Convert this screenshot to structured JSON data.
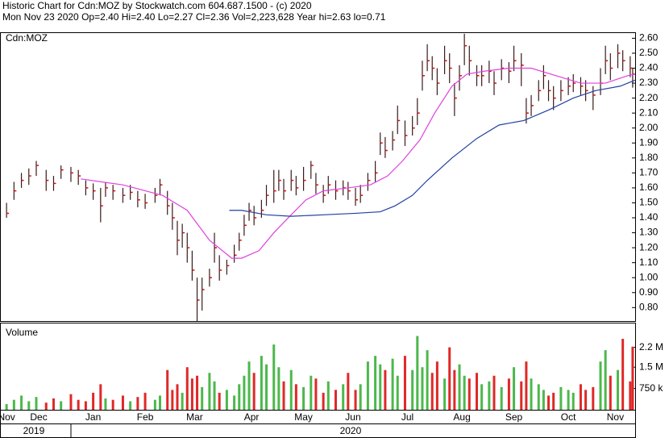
{
  "header": {
    "title": "Historic Chart for Cdn:MOZ by Stockwatch.com 604.687.1500 - (c) 2020",
    "summary": "Mon Nov 23 2020  Op=2.40 Hi=2.40 Lo=2.27 Cl=2.36 Vol=2,223,628 Year hi=2.63  lo=0.71"
  },
  "chart_data": [
    {
      "type": "ohlc",
      "title": "Cdn:MOZ",
      "xlim": [
        0,
        256
      ],
      "ylim": [
        0.71,
        2.64
      ],
      "yticks": [
        {
          "value": 0.8,
          "label": "0.80"
        },
        {
          "value": 0.9,
          "label": "0.90"
        },
        {
          "value": 1.0,
          "label": "1.00"
        },
        {
          "value": 1.1,
          "label": "1.10"
        },
        {
          "value": 1.2,
          "label": "1.20"
        },
        {
          "value": 1.3,
          "label": "1.30"
        },
        {
          "value": 1.4,
          "label": "1.40"
        },
        {
          "value": 1.5,
          "label": "1.50"
        },
        {
          "value": 1.6,
          "label": "1.60"
        },
        {
          "value": 1.7,
          "label": "1.70"
        },
        {
          "value": 1.8,
          "label": "1.80"
        },
        {
          "value": 1.9,
          "label": "1.90"
        },
        {
          "value": 2.0,
          "label": "2.00"
        },
        {
          "value": 2.1,
          "label": "2.10"
        },
        {
          "value": 2.2,
          "label": "2.20"
        },
        {
          "value": 2.3,
          "label": "2.30"
        },
        {
          "value": 2.4,
          "label": "2.40"
        },
        {
          "value": 2.5,
          "label": "2.50"
        },
        {
          "value": 2.6,
          "label": "2.60"
        }
      ],
      "x": [
        2,
        5,
        8,
        11,
        14,
        18,
        21,
        24,
        28,
        31,
        34,
        37,
        40,
        42,
        45,
        49,
        52,
        55,
        58,
        62,
        64,
        67,
        69,
        71,
        73,
        75,
        77,
        79,
        81,
        84,
        86,
        88,
        91,
        94,
        96,
        98,
        100,
        102,
        105,
        107,
        110,
        112,
        114,
        117,
        119,
        122,
        125,
        127,
        130,
        132,
        135,
        138,
        140,
        143,
        145,
        148,
        151,
        153,
        155,
        158,
        160,
        163,
        166,
        168,
        170,
        172,
        174,
        176,
        179,
        181,
        183,
        185,
        187,
        189,
        192,
        194,
        197,
        199,
        202,
        205,
        207,
        210,
        212,
        214,
        217,
        219,
        221,
        223,
        226,
        229,
        231,
        234,
        236,
        239,
        242,
        244,
        246,
        249,
        251,
        254,
        255
      ],
      "high": [
        1.5,
        1.64,
        1.7,
        1.73,
        1.78,
        1.72,
        1.68,
        1.75,
        1.74,
        1.72,
        1.65,
        1.63,
        1.6,
        1.64,
        1.62,
        1.6,
        1.62,
        1.58,
        1.56,
        1.6,
        1.66,
        1.58,
        1.5,
        1.38,
        1.36,
        1.3,
        1.18,
        1.0,
        1.0,
        1.06,
        1.3,
        1.15,
        1.12,
        1.22,
        1.3,
        1.42,
        1.5,
        1.48,
        1.52,
        1.62,
        1.72,
        1.72,
        1.66,
        1.72,
        1.68,
        1.74,
        1.78,
        1.7,
        1.62,
        1.68,
        1.65,
        1.65,
        1.64,
        1.6,
        1.62,
        1.7,
        1.78,
        1.97,
        1.94,
        1.98,
        2.15,
        2.05,
        2.08,
        2.2,
        2.45,
        2.56,
        2.48,
        2.4,
        2.55,
        2.5,
        2.3,
        2.42,
        2.63,
        2.55,
        2.42,
        2.42,
        2.45,
        2.38,
        2.46,
        2.44,
        2.55,
        2.5,
        2.2,
        2.22,
        2.32,
        2.42,
        2.32,
        2.28,
        2.32,
        2.34,
        2.36,
        2.34,
        2.32,
        2.28,
        2.4,
        2.55,
        2.5,
        2.56,
        2.52,
        2.48,
        2.4
      ],
      "low": [
        1.4,
        1.52,
        1.6,
        1.62,
        1.68,
        1.58,
        1.58,
        1.66,
        1.64,
        1.62,
        1.55,
        1.52,
        1.37,
        1.54,
        1.52,
        1.5,
        1.52,
        1.47,
        1.46,
        1.5,
        1.55,
        1.42,
        1.32,
        1.15,
        1.2,
        1.1,
        0.98,
        0.71,
        0.78,
        0.94,
        1.1,
        0.98,
        1.02,
        1.1,
        1.18,
        1.28,
        1.38,
        1.35,
        1.4,
        1.48,
        1.5,
        1.58,
        1.52,
        1.58,
        1.55,
        1.58,
        1.66,
        1.56,
        1.5,
        1.56,
        1.52,
        1.55,
        1.52,
        1.48,
        1.5,
        1.58,
        1.64,
        1.82,
        1.8,
        1.85,
        1.96,
        1.88,
        1.95,
        2.02,
        2.25,
        2.38,
        2.32,
        2.22,
        2.36,
        2.3,
        2.08,
        2.25,
        2.42,
        2.35,
        2.28,
        2.28,
        2.3,
        2.22,
        2.32,
        2.3,
        2.38,
        2.28,
        2.03,
        2.08,
        2.18,
        2.26,
        2.18,
        2.12,
        2.18,
        2.22,
        2.24,
        2.22,
        2.18,
        2.12,
        2.22,
        2.36,
        2.32,
        2.4,
        2.38,
        2.34,
        2.27
      ],
      "close": [
        1.43,
        1.58,
        1.65,
        1.68,
        1.75,
        1.65,
        1.63,
        1.72,
        1.7,
        1.68,
        1.6,
        1.58,
        1.48,
        1.6,
        1.58,
        1.55,
        1.57,
        1.52,
        1.5,
        1.55,
        1.62,
        1.48,
        1.4,
        1.25,
        1.3,
        1.2,
        1.05,
        0.85,
        0.92,
        1.0,
        1.2,
        1.05,
        1.08,
        1.15,
        1.25,
        1.35,
        1.45,
        1.4,
        1.45,
        1.55,
        1.58,
        1.65,
        1.58,
        1.65,
        1.6,
        1.65,
        1.75,
        1.62,
        1.55,
        1.62,
        1.58,
        1.6,
        1.58,
        1.52,
        1.55,
        1.65,
        1.7,
        1.9,
        1.85,
        1.92,
        2.05,
        1.95,
        2.0,
        2.1,
        2.35,
        2.45,
        2.4,
        2.3,
        2.45,
        2.4,
        2.2,
        2.35,
        2.55,
        2.45,
        2.35,
        2.35,
        2.38,
        2.3,
        2.4,
        2.38,
        2.45,
        2.42,
        2.1,
        2.15,
        2.25,
        2.35,
        2.25,
        2.2,
        2.25,
        2.28,
        2.3,
        2.28,
        2.25,
        2.22,
        2.3,
        2.45,
        2.4,
        2.5,
        2.45,
        2.4,
        2.36
      ],
      "bar_color": "#3a1a1a",
      "close_color": "#d01010",
      "lines": [
        {
          "color": "#e040e0",
          "x": [
            32,
            49,
            65,
            75,
            84,
            93,
            97,
            104,
            110,
            117,
            123,
            130,
            140,
            149,
            156,
            162,
            169,
            175,
            182,
            188,
            195,
            205,
            214,
            224,
            234,
            244,
            253,
            256
          ],
          "values": [
            1.66,
            1.62,
            1.55,
            1.45,
            1.25,
            1.13,
            1.13,
            1.18,
            1.3,
            1.42,
            1.52,
            1.58,
            1.6,
            1.62,
            1.68,
            1.78,
            1.92,
            2.1,
            2.28,
            2.36,
            2.38,
            2.4,
            2.4,
            2.35,
            2.3,
            2.3,
            2.35,
            2.36
          ]
        },
        {
          "color": "#2040a0",
          "x": [
            92,
            97,
            107,
            117,
            130,
            143,
            153,
            159,
            166,
            172,
            182,
            192,
            201,
            211,
            221,
            231,
            240,
            250,
            256
          ],
          "values": [
            1.45,
            1.45,
            1.42,
            1.41,
            1.42,
            1.43,
            1.44,
            1.48,
            1.55,
            1.65,
            1.8,
            1.93,
            2.02,
            2.05,
            2.12,
            2.2,
            2.25,
            2.28,
            2.32
          ]
        }
      ]
    },
    {
      "type": "volume",
      "title": "Volume",
      "ylim": [
        0,
        3070000
      ],
      "yticks": [
        {
          "value": 750000,
          "label": "750 k"
        },
        {
          "value": 1500000,
          "label": "1.5 M"
        },
        {
          "value": 2200000,
          "label": "2.2 M"
        }
      ],
      "values": [
        200000,
        350000,
        500000,
        300000,
        450000,
        250000,
        400000,
        300000,
        550000,
        350000,
        300000,
        600000,
        900000,
        400000,
        350000,
        500000,
        300000,
        450000,
        600000,
        350000,
        500000,
        1400000,
        700000,
        900000,
        600000,
        1500000,
        1100000,
        1200000,
        800000,
        1300000,
        1000000,
        600000,
        700000,
        500000,
        900000,
        1200000,
        1700000,
        1300000,
        1900000,
        1600000,
        2300000,
        1500000,
        1000000,
        1400000,
        900000,
        800000,
        1200000,
        1100000,
        600000,
        1000000,
        700000,
        900000,
        1300000,
        700000,
        900000,
        1700000,
        1900000,
        1600000,
        1400000,
        1800000,
        1200000,
        1900000,
        1400000,
        2600000,
        1500000,
        2100000,
        1300000,
        1700000,
        1100000,
        2200000,
        1400000,
        1600000,
        1200000,
        1100000,
        1300000,
        900000,
        1000000,
        1200000,
        800000,
        1100000,
        1500000,
        1000000,
        1700000,
        1100000,
        900000,
        700000,
        500000,
        600000,
        800000,
        700000,
        600000,
        900000,
        700000,
        800000,
        1700000,
        2100000,
        1200000,
        1400000,
        2500000,
        1000000,
        2223628
      ],
      "up_color": "#4cb84c",
      "down_color": "#e02828",
      "xticks": [
        {
          "value": 2,
          "label": "Nov"
        },
        {
          "value": 15,
          "label": "Dec"
        },
        {
          "value": 37,
          "label": "Jan"
        },
        {
          "value": 58,
          "label": "Feb"
        },
        {
          "value": 78,
          "label": "Mar"
        },
        {
          "value": 101,
          "label": "Apr"
        },
        {
          "value": 122,
          "label": "May"
        },
        {
          "value": 142,
          "label": "Jun"
        },
        {
          "value": 164,
          "label": "Jul"
        },
        {
          "value": 186,
          "label": "Aug"
        },
        {
          "value": 207,
          "label": "Sep"
        },
        {
          "value": 229,
          "label": "Oct"
        },
        {
          "value": 248,
          "label": "Nov"
        }
      ],
      "years": [
        {
          "value": 13,
          "label": "2019"
        },
        {
          "value": 141,
          "label": "2020"
        }
      ]
    }
  ]
}
